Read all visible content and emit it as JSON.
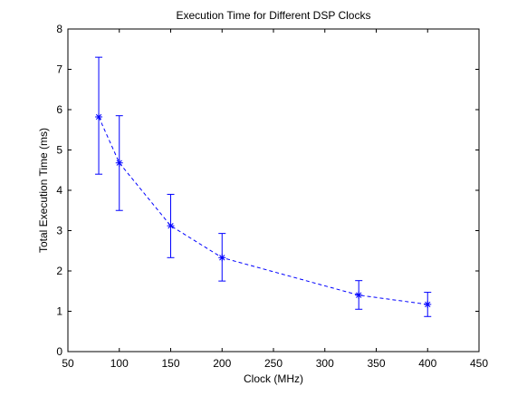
{
  "chart_data": {
    "type": "line",
    "title": "Execution Time for Different DSP Clocks",
    "xlabel": "Clock (MHz)",
    "ylabel": "Total Execution Time (ms)",
    "xlim": [
      50,
      450
    ],
    "ylim": [
      0,
      8
    ],
    "xticks": [
      50,
      100,
      150,
      200,
      250,
      300,
      350,
      400,
      450
    ],
    "yticks": [
      0,
      1,
      2,
      3,
      4,
      5,
      6,
      7,
      8
    ],
    "grid": false,
    "legend": "none",
    "line_style": "dashed",
    "marker": "*",
    "color": "#0000ff",
    "series": [
      {
        "x": [
          80,
          100,
          150,
          200,
          333,
          400
        ],
        "y": [
          5.82,
          4.68,
          3.12,
          2.33,
          1.4,
          1.17
        ],
        "err_low": [
          4.4,
          3.5,
          2.33,
          1.75,
          1.05,
          0.87
        ],
        "err_high": [
          7.3,
          5.85,
          3.9,
          2.93,
          1.76,
          1.47
        ]
      }
    ]
  }
}
